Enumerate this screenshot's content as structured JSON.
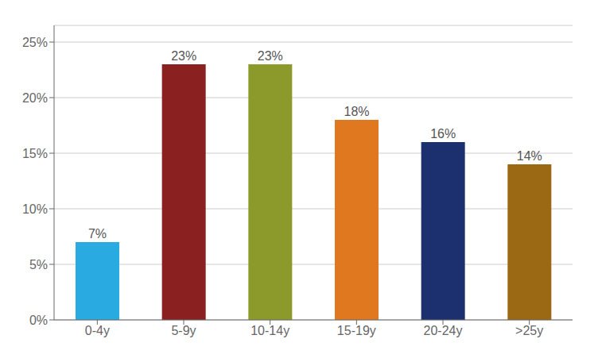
{
  "chart_data": {
    "type": "bar",
    "categories": [
      "0-4y",
      "5-9y",
      "10-14y",
      "15-19y",
      "20-24y",
      ">25y"
    ],
    "values": [
      0.07,
      0.23,
      0.23,
      0.18,
      0.16,
      0.14
    ],
    "value_labels": [
      "7%",
      "23%",
      "23%",
      "18%",
      "16%",
      "14%"
    ],
    "colors": [
      "#29ABE2",
      "#8B2020",
      "#8B9A2A",
      "#E07820",
      "#1C2F6E",
      "#9B6914"
    ],
    "ylim": [
      0,
      0.265
    ],
    "yticks": [
      {
        "value": 0.0,
        "label": "0%"
      },
      {
        "value": 0.05,
        "label": "5%"
      },
      {
        "value": 0.1,
        "label": "10%"
      },
      {
        "value": 0.15,
        "label": "15%"
      },
      {
        "value": 0.2,
        "label": "20%"
      },
      {
        "value": 0.25,
        "label": "25%"
      }
    ],
    "grid": true,
    "data_labels": true
  }
}
